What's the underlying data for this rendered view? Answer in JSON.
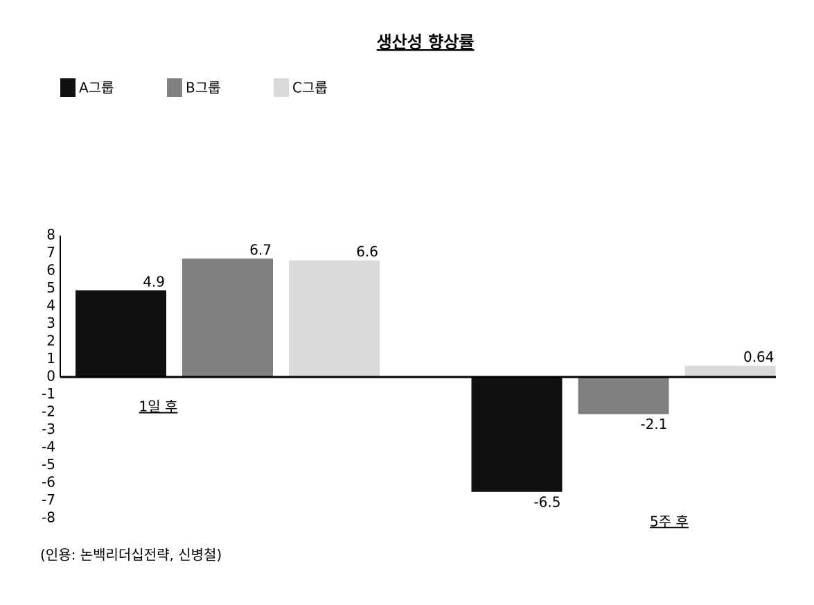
{
  "chart_data": {
    "type": "bar",
    "title": "생산성 향상률",
    "categories": [
      "1일 후",
      "5주 후"
    ],
    "series": [
      {
        "name": "A그룹",
        "color": "#111111",
        "values": [
          4.9,
          -6.5
        ]
      },
      {
        "name": "B그룹",
        "color": "#808080",
        "values": [
          6.7,
          -2.1
        ]
      },
      {
        "name": "C그룹",
        "color": "#d9d9d9",
        "values": [
          6.6,
          0.64
        ]
      }
    ],
    "ylim": [
      -8,
      8
    ],
    "yticks": [
      -8,
      -7,
      -6,
      -5,
      -4,
      -3,
      -2,
      -1,
      0,
      1,
      2,
      3,
      4,
      5,
      6,
      7,
      8
    ],
    "legend": "top-left",
    "source": "(인용: 논백리더십전략, 신병철)"
  }
}
